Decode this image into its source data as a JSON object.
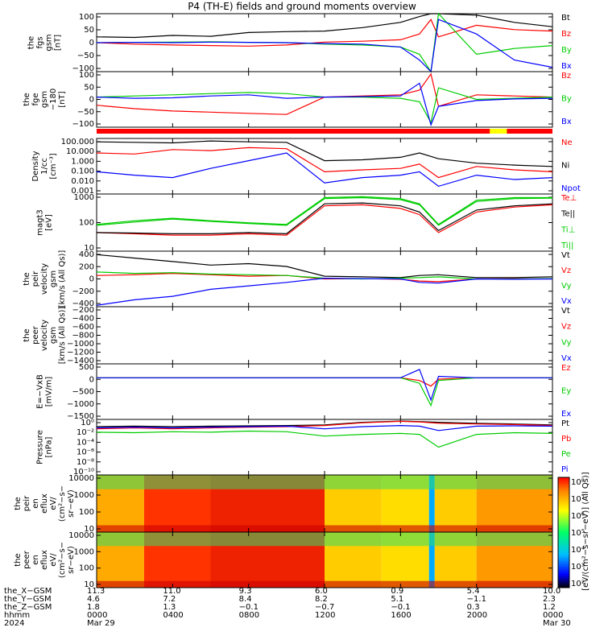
{
  "title": "P4 (TH-E) fields and ground moments overview",
  "colors": {
    "black": "#000000",
    "red": "#ff0000",
    "green": "#00cc00",
    "blue": "#0000ff",
    "yellow": "#ffff00"
  },
  "panels": [
    {
      "id": "fgs-gsm",
      "ylabel": [
        "the",
        "fgs",
        "gsm",
        "[nT]"
      ],
      "yticks": [
        "100",
        "50",
        "0",
        "−50",
        "−100"
      ],
      "legend": [
        {
          "t": "Bt",
          "c": "black"
        },
        {
          "t": "Bz",
          "c": "red"
        },
        {
          "t": "By",
          "c": "green"
        },
        {
          "t": "Bx",
          "c": "blue"
        }
      ]
    },
    {
      "id": "fge-gsm",
      "ylabel": [
        "the",
        "fge",
        "gsm",
        "−180",
        "[nT]"
      ],
      "yticks": [
        "100",
        "50",
        "0",
        "−50",
        "−100"
      ],
      "legend": [
        {
          "t": "Bz",
          "c": "red"
        },
        {
          "t": "By",
          "c": "green"
        },
        {
          "t": "Bx",
          "c": "blue"
        }
      ]
    },
    {
      "id": "density",
      "ylabel": [
        "Density",
        "1/cc",
        "[cm⁻³]"
      ],
      "yticks": [
        "100.000",
        "10.000",
        "1.000",
        "0.100",
        "0.010",
        "0.001"
      ],
      "legend": [
        {
          "t": "Ne",
          "c": "red"
        },
        {
          "t": "Ni",
          "c": "black"
        },
        {
          "t": "Npot",
          "c": "blue"
        }
      ]
    },
    {
      "id": "temperature",
      "ylabel": [
        "magt3",
        "[eV]"
      ],
      "yticks": [
        "1000",
        "100",
        "10"
      ],
      "legend": [
        {
          "t": "Te⊥",
          "c": "red"
        },
        {
          "t": "Te||",
          "c": "black"
        },
        {
          "t": "Ti⊥",
          "c": "green"
        },
        {
          "t": "Ti||",
          "c": "green"
        }
      ]
    },
    {
      "id": "peir-velocity",
      "ylabel": [
        "the",
        "peir",
        "velocity",
        "gsm",
        "[km/s (All Qs)]"
      ],
      "yticks": [
        "400",
        "200",
        "0",
        "−200",
        "−400"
      ],
      "legend": [
        {
          "t": "Vt",
          "c": "black"
        },
        {
          "t": "Vz",
          "c": "red"
        },
        {
          "t": "Vy",
          "c": "green"
        },
        {
          "t": "Vx",
          "c": "blue"
        }
      ]
    },
    {
      "id": "peer-velocity",
      "ylabel": [
        "the",
        "peer",
        "velocity",
        "gsm",
        "[km/s (All Qs)]"
      ],
      "yticks": [
        "−200",
        "−400",
        "−600",
        "−800",
        "−1000",
        "−1200",
        "−1400"
      ],
      "legend": [
        {
          "t": "Vt",
          "c": "black"
        },
        {
          "t": "Vz",
          "c": "red"
        },
        {
          "t": "Vy",
          "c": "green"
        },
        {
          "t": "Vx",
          "c": "blue"
        }
      ]
    },
    {
      "id": "efield",
      "ylabel": [
        "E=−VxB",
        "[mV/m]"
      ],
      "yticks": [
        "500",
        "0",
        "−500",
        "−1000",
        "−1500"
      ],
      "legend": [
        {
          "t": "Ez",
          "c": "red"
        },
        {
          "t": "Ey",
          "c": "green"
        },
        {
          "t": "Ex",
          "c": "blue"
        }
      ]
    },
    {
      "id": "pressure",
      "ylabel": [
        "Pressure",
        "[nPa]"
      ],
      "yticks": [
        "10⁰",
        "10⁻²",
        "10⁻⁴",
        "10⁻⁶",
        "10⁻⁸",
        "10⁻¹⁰"
      ],
      "legend": [
        {
          "t": "Pt",
          "c": "black"
        },
        {
          "t": "Pb",
          "c": "red"
        },
        {
          "t": "Pe",
          "c": "green"
        },
        {
          "t": "Pi",
          "c": "blue"
        }
      ]
    },
    {
      "id": "peir-eflux",
      "ylabel": [
        "the",
        "peir",
        "en",
        "eflux",
        "eV/",
        "(cm²−s−",
        "sr−eV)"
      ],
      "yticks": [
        "10000",
        "1000",
        "100",
        "10"
      ],
      "legend": []
    },
    {
      "id": "peer-eflux",
      "ylabel": [
        "the",
        "peer",
        "en",
        "eflux",
        "eV/",
        "(cm²−s−",
        "sr−eV)"
      ],
      "yticks": [
        "10000",
        "1000",
        "100",
        "10"
      ],
      "legend": []
    }
  ],
  "colorbar": {
    "ticks": [
      "10⁸",
      "10⁷",
      "10⁶",
      "10⁵",
      "10⁴",
      "10³",
      "10²"
    ],
    "label": "[eV/(cm²−s−sr−eV)] (All Qs)]"
  },
  "footer": {
    "row_labels": [
      "the_X−GSM",
      "the_Y−GSM",
      "the_Z−GSM",
      "hhmm",
      "2024"
    ],
    "columns": [
      {
        "x": "11.3",
        "y": "4.6",
        "z": "1.8",
        "hhmm": "0000",
        "date": "Mar 29"
      },
      {
        "x": "11.0",
        "y": "7.2",
        "z": "1.3",
        "hhmm": "0400",
        "date": ""
      },
      {
        "x": "9.3",
        "y": "8.4",
        "z": "−0.1",
        "hhmm": "0800",
        "date": ""
      },
      {
        "x": "6.0",
        "y": "8.2",
        "z": "−0.7",
        "hhmm": "1200",
        "date": ""
      },
      {
        "x": "0.9",
        "y": "5.1",
        "z": "−0.1",
        "hhmm": "1600",
        "date": ""
      },
      {
        "x": "5.4",
        "y": "−1.1",
        "z": "0.3",
        "hhmm": "2000",
        "date": ""
      },
      {
        "x": "10.0",
        "y": "2.3",
        "z": "1.2",
        "hhmm": "0000",
        "date": "Mar 30"
      }
    ]
  },
  "chart_data": [
    {
      "type": "line",
      "panel": "fgs-gsm",
      "ylim": [
        -100,
        100
      ],
      "xlabel": "hhmm",
      "x_hours": [
        0,
        2,
        4,
        6,
        8,
        10,
        12,
        14,
        16,
        17,
        17.6,
        18,
        20,
        22,
        24
      ],
      "series": [
        {
          "name": "Bt",
          "values": [
            20,
            18,
            25,
            22,
            35,
            38,
            40,
            52,
            70,
            90,
            100,
            100,
            95,
            70,
            55
          ]
        },
        {
          "name": "Bz",
          "values": [
            0,
            -5,
            -8,
            -10,
            -12,
            -8,
            2,
            5,
            10,
            30,
            80,
            20,
            60,
            45,
            40
          ]
        },
        {
          "name": "By",
          "values": [
            0,
            1,
            2,
            3,
            1,
            0,
            -5,
            -8,
            -15,
            -40,
            -100,
            100,
            -40,
            -20,
            -10
          ]
        },
        {
          "name": "Bx",
          "values": [
            0,
            1,
            0,
            2,
            1,
            0,
            -3,
            -5,
            -15,
            -60,
            -100,
            80,
            30,
            -60,
            -85
          ]
        }
      ]
    },
    {
      "type": "line",
      "panel": "fge-gsm",
      "ylim": [
        -130,
        110
      ],
      "x_hours": [
        0,
        2,
        4,
        6,
        8,
        10,
        12,
        14,
        16,
        17,
        17.6,
        18,
        20,
        22,
        24
      ],
      "series": [
        {
          "name": "Bz",
          "values": [
            -35,
            -50,
            -60,
            -65,
            -70,
            -75,
            0,
            5,
            10,
            30,
            100,
            -40,
            10,
            5,
            0
          ]
        },
        {
          "name": "By",
          "values": [
            0,
            5,
            10,
            15,
            20,
            15,
            0,
            0,
            -5,
            -20,
            -110,
            40,
            -10,
            -5,
            0
          ]
        },
        {
          "name": "Bx",
          "values": [
            0,
            -5,
            -3,
            5,
            10,
            -5,
            0,
            2,
            5,
            60,
            -120,
            -40,
            -15,
            -8,
            -5
          ]
        }
      ]
    },
    {
      "type": "line",
      "panel": "density",
      "yscale": "log",
      "ylim": [
        0.001,
        100
      ],
      "x_hours": [
        0,
        2,
        4,
        6,
        8,
        10,
        12,
        14,
        16,
        17,
        18,
        20,
        22,
        24
      ],
      "series": [
        {
          "name": "Ne",
          "values": [
            5,
            4,
            10,
            8,
            15,
            12,
            0.1,
            0.15,
            0.2,
            0.5,
            0.03,
            0.3,
            0.15,
            0.1
          ]
        },
        {
          "name": "Ni",
          "values": [
            50,
            45,
            40,
            60,
            50,
            45,
            1.0,
            1.2,
            2.0,
            5.0,
            1.5,
            0.6,
            0.4,
            0.3
          ]
        },
        {
          "name": "Npot",
          "values": [
            0.1,
            0.05,
            0.03,
            0.2,
            1.0,
            5.0,
            0.01,
            0.03,
            0.05,
            0.1,
            0.005,
            0.05,
            0.02,
            0.03
          ]
        }
      ]
    },
    {
      "type": "line",
      "panel": "temperature",
      "yscale": "log",
      "ylim": [
        5,
        3000
      ],
      "x_hours": [
        0,
        2,
        4,
        6,
        8,
        10,
        12,
        14,
        16,
        17,
        18,
        20,
        22,
        24
      ],
      "series": [
        {
          "name": "Te⊥",
          "values": [
            40,
            35,
            30,
            30,
            35,
            30,
            800,
            900,
            600,
            300,
            40,
            400,
            700,
            900
          ]
        },
        {
          "name": "Te||",
          "values": [
            40,
            38,
            35,
            35,
            40,
            35,
            1000,
            1100,
            800,
            400,
            50,
            500,
            800,
            1000
          ]
        },
        {
          "name": "Ti⊥",
          "values": [
            100,
            150,
            200,
            150,
            120,
            100,
            2000,
            2200,
            1800,
            1000,
            100,
            1500,
            2000,
            2000
          ]
        },
        {
          "name": "Ti||",
          "values": [
            90,
            130,
            180,
            140,
            110,
            90,
            1800,
            2000,
            1600,
            900,
            90,
            1300,
            1800,
            1900
          ]
        }
      ]
    },
    {
      "type": "line",
      "panel": "peir-velocity",
      "ylim": [
        -400,
        400
      ],
      "x_hours": [
        0,
        2,
        4,
        6,
        8,
        10,
        12,
        14,
        16,
        17,
        18,
        20,
        22,
        24
      ],
      "series": [
        {
          "name": "Vt",
          "values": [
            350,
            300,
            250,
            200,
            220,
            180,
            40,
            30,
            20,
            50,
            60,
            20,
            20,
            30
          ]
        },
        {
          "name": "Vz",
          "values": [
            50,
            60,
            80,
            60,
            40,
            50,
            0,
            5,
            -5,
            -30,
            -40,
            0,
            5,
            0
          ]
        },
        {
          "name": "Vy",
          "values": [
            100,
            80,
            90,
            70,
            60,
            50,
            10,
            0,
            10,
            20,
            30,
            0,
            0,
            5
          ]
        },
        {
          "name": "Vx",
          "values": [
            -380,
            -300,
            -250,
            -150,
            -100,
            -50,
            10,
            5,
            0,
            -50,
            -60,
            0,
            -5,
            0
          ]
        }
      ]
    },
    {
      "type": "line",
      "panel": "efield",
      "ylim": [
        -1500,
        500
      ],
      "x_hours": [
        0,
        2,
        4,
        6,
        8,
        10,
        12,
        14,
        16,
        17,
        17.6,
        18,
        20,
        22,
        24
      ],
      "series": [
        {
          "name": "Ez",
          "values": [
            0,
            0,
            0,
            0,
            0,
            0,
            0,
            0,
            0,
            -100,
            -300,
            -50,
            0,
            0,
            0
          ]
        },
        {
          "name": "Ey",
          "values": [
            0,
            0,
            0,
            0,
            0,
            0,
            0,
            0,
            0,
            -200,
            -1000,
            -100,
            0,
            0,
            0
          ]
        },
        {
          "name": "Ex",
          "values": [
            0,
            0,
            0,
            0,
            0,
            0,
            0,
            0,
            0,
            300,
            -800,
            50,
            0,
            0,
            0
          ]
        }
      ]
    },
    {
      "type": "line",
      "panel": "pressure",
      "yscale": "log",
      "ylim": [
        1e-10,
        1
      ],
      "x_hours": [
        0,
        2,
        4,
        6,
        8,
        10,
        12,
        14,
        16,
        17,
        18,
        20,
        22,
        24
      ],
      "series": [
        {
          "name": "Pt",
          "values": [
            0.05,
            0.06,
            0.05,
            0.06,
            0.07,
            0.08,
            0.1,
            0.3,
            0.5,
            0.4,
            0.3,
            0.2,
            0.15,
            0.1
          ]
        },
        {
          "name": "Pb",
          "values": [
            0.02,
            0.03,
            0.02,
            0.03,
            0.04,
            0.05,
            0.08,
            0.25,
            0.45,
            0.35,
            0.2,
            0.15,
            0.12,
            0.08
          ]
        },
        {
          "name": "Pe",
          "values": [
            0.005,
            0.004,
            0.006,
            0.005,
            0.008,
            0.006,
            0.001,
            0.002,
            0.003,
            0.002,
            1e-05,
            0.002,
            0.004,
            0.003
          ]
        },
        {
          "name": "Pi",
          "values": [
            0.03,
            0.04,
            0.03,
            0.04,
            0.05,
            0.06,
            0.02,
            0.05,
            0.08,
            0.06,
            0.01,
            0.06,
            0.07,
            0.06
          ]
        }
      ]
    },
    {
      "type": "heatmap",
      "panel": "peir-eflux",
      "yscale": "log",
      "ylim": [
        5,
        30000
      ],
      "x_hours": [
        0,
        24
      ]
    },
    {
      "type": "heatmap",
      "panel": "peer-eflux",
      "yscale": "log",
      "ylim": [
        5,
        30000
      ],
      "x_hours": [
        0,
        24
      ]
    }
  ]
}
